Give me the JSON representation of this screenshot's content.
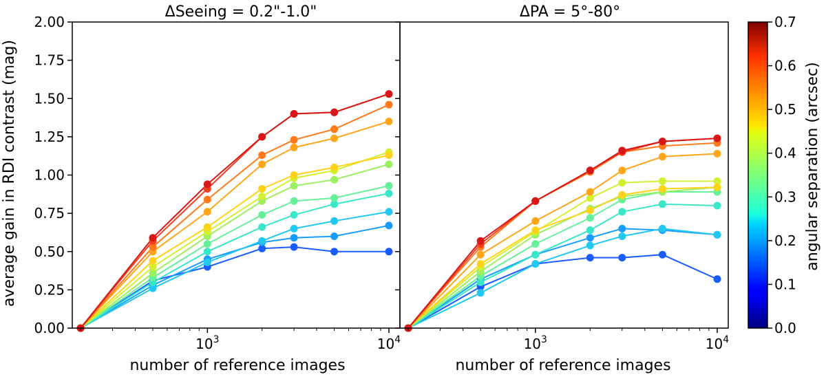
{
  "chart_data": {
    "type": "line",
    "x_scale": "log",
    "xlabel": "number of reference images",
    "ylabel": "average gain in RDI contrast (mag)",
    "ylim": [
      0,
      2.0
    ],
    "xlim": [
      180,
      11500
    ],
    "y_ticks": [
      "0.00",
      "0.25",
      "0.50",
      "0.75",
      "1.00",
      "1.25",
      "1.50",
      "1.75",
      "2.00"
    ],
    "y_tick_values": [
      0,
      0.25,
      0.5,
      0.75,
      1.0,
      1.25,
      1.5,
      1.75,
      2.0
    ],
    "x_ticks": [
      {
        "value": 1000,
        "base": "10",
        "exp": "3"
      },
      {
        "value": 10000,
        "base": "10",
        "exp": "4"
      }
    ],
    "colorbar": {
      "label": "angular separation (arcsec)",
      "range": [
        0,
        0.7
      ],
      "ticks": [
        "0.0",
        "0.1",
        "0.2",
        "0.3",
        "0.4",
        "0.5",
        "0.6",
        "0.7"
      ],
      "tick_values": [
        0,
        0.1,
        0.2,
        0.3,
        0.4,
        0.5,
        0.6,
        0.7
      ]
    },
    "panels": [
      {
        "title": "ΔSeeing = 0.2\"-1.0\"",
        "x": [
          200,
          500,
          1000,
          2000,
          3000,
          5000,
          10000
        ],
        "series": [
          {
            "name": "0.10",
            "color": "#1a5cff",
            "values": [
              0,
              0.31,
              0.4,
              0.52,
              0.53,
              0.5,
              0.5
            ]
          },
          {
            "name": "0.15",
            "color": "#1a9cff",
            "values": [
              0,
              0.28,
              0.45,
              0.56,
              0.59,
              0.6,
              0.67
            ]
          },
          {
            "name": "0.20",
            "color": "#22c8f0",
            "values": [
              0,
              0.26,
              0.43,
              0.57,
              0.65,
              0.7,
              0.76
            ]
          },
          {
            "name": "0.25",
            "color": "#3ae6c8",
            "values": [
              0,
              0.3,
              0.5,
              0.66,
              0.74,
              0.81,
              0.88
            ]
          },
          {
            "name": "0.30",
            "color": "#66f09a",
            "values": [
              0,
              0.33,
              0.55,
              0.74,
              0.83,
              0.85,
              0.93
            ]
          },
          {
            "name": "0.35",
            "color": "#9cf060",
            "values": [
              0,
              0.36,
              0.6,
              0.83,
              0.93,
              0.97,
              1.07
            ]
          },
          {
            "name": "0.40",
            "color": "#d2f030",
            "values": [
              0,
              0.4,
              0.63,
              0.86,
              0.98,
              1.03,
              1.15
            ]
          },
          {
            "name": "0.45",
            "color": "#ffd21a",
            "values": [
              0,
              0.44,
              0.66,
              0.91,
              1.0,
              1.05,
              1.13
            ]
          },
          {
            "name": "0.50",
            "color": "#ffa51a",
            "values": [
              0,
              0.5,
              0.76,
              1.07,
              1.18,
              1.24,
              1.35
            ]
          },
          {
            "name": "0.55",
            "color": "#ff7a1a",
            "values": [
              0,
              0.53,
              0.84,
              1.13,
              1.23,
              1.3,
              1.46
            ]
          },
          {
            "name": "0.60",
            "color": "#f04020",
            "values": [
              0,
              0.57,
              0.91,
              1.25,
              1.4,
              1.41,
              1.53
            ]
          },
          {
            "name": "0.65",
            "color": "#d81818",
            "values": [
              0,
              0.59,
              0.94,
              1.25,
              1.4,
              1.41,
              1.53
            ]
          }
        ]
      },
      {
        "title": "ΔPA = 5°-80°",
        "x": [
          200,
          500,
          1000,
          2000,
          3000,
          5000,
          10000
        ],
        "series": [
          {
            "name": "0.10",
            "color": "#1a5cff",
            "values": [
              0,
              0.27,
              0.42,
              0.46,
              0.46,
              0.48,
              0.32
            ]
          },
          {
            "name": "0.15",
            "color": "#1a9cff",
            "values": [
              0,
              0.32,
              0.48,
              0.59,
              0.65,
              0.64,
              0.61
            ]
          },
          {
            "name": "0.20",
            "color": "#22c8f0",
            "values": [
              0,
              0.23,
              0.42,
              0.54,
              0.6,
              0.65,
              0.61
            ]
          },
          {
            "name": "0.25",
            "color": "#3ae6c8",
            "values": [
              0,
              0.3,
              0.48,
              0.64,
              0.76,
              0.81,
              0.8
            ]
          },
          {
            "name": "0.30",
            "color": "#66f09a",
            "values": [
              0,
              0.34,
              0.55,
              0.72,
              0.84,
              0.89,
              0.89
            ]
          },
          {
            "name": "0.35",
            "color": "#9cf060",
            "values": [
              0,
              0.37,
              0.61,
              0.78,
              0.86,
              0.89,
              0.92
            ]
          },
          {
            "name": "0.40",
            "color": "#d2f030",
            "values": [
              0,
              0.4,
              0.63,
              0.85,
              0.95,
              0.96,
              0.96
            ]
          },
          {
            "name": "0.45",
            "color": "#ffd21a",
            "values": [
              0,
              0.42,
              0.64,
              0.77,
              0.87,
              0.91,
              0.92
            ]
          },
          {
            "name": "0.50",
            "color": "#ffa51a",
            "values": [
              0,
              0.48,
              0.7,
              0.89,
              1.03,
              1.12,
              1.14
            ]
          },
          {
            "name": "0.55",
            "color": "#ff7a1a",
            "values": [
              0,
              0.53,
              0.83,
              1.02,
              1.15,
              1.19,
              1.21
            ]
          },
          {
            "name": "0.60",
            "color": "#f04020",
            "values": [
              0,
              0.55,
              0.83,
              1.03,
              1.15,
              1.22,
              1.24
            ]
          },
          {
            "name": "0.65",
            "color": "#d81818",
            "values": [
              0,
              0.57,
              0.83,
              1.03,
              1.16,
              1.22,
              1.24
            ]
          }
        ]
      }
    ]
  }
}
